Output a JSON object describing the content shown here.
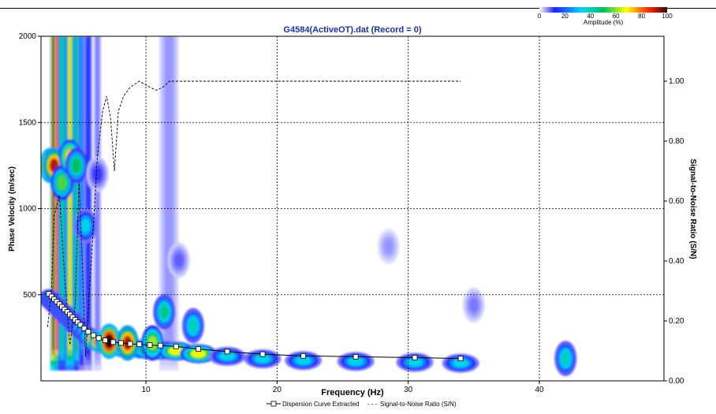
{
  "chart_data": {
    "type": "heatmap",
    "title": "G4584(ActiveOT).dat (Record = 0)",
    "xlabel": "Frequency (Hz)",
    "ylabel": "Phase Velocity (m/sec)",
    "y2label": "Signal-to-Noise Ratio (S/N)",
    "xlim": [
      2,
      49.5
    ],
    "ylim": [
      0,
      2000
    ],
    "y2lim": [
      0,
      1.15
    ],
    "xticks": [
      "10",
      "20",
      "30",
      "40"
    ],
    "yticks": [
      "500",
      "1000",
      "1500",
      "2000"
    ],
    "y2ticks": [
      "0.00",
      "0.20",
      "0.40",
      "0.60",
      "0.80",
      "1.00"
    ],
    "grid": true,
    "legend_position": "bottom-center",
    "colorbar": {
      "label": "Amplitude (%)",
      "ticks": [
        "0",
        "20",
        "40",
        "60",
        "80",
        "100"
      ],
      "position": "top-right",
      "colors": [
        "#ffffff",
        "#2020ff",
        "#00d4ff",
        "#00c060",
        "#ffff00",
        "#ff3000",
        "#400000"
      ]
    },
    "series": [
      {
        "name": "Dispersion Curve Extracted",
        "style": "line-with-square-markers",
        "x": [
          2.6,
          2.8,
          3.0,
          3.2,
          3.4,
          3.6,
          3.8,
          4.0,
          4.2,
          4.4,
          4.6,
          4.8,
          5.0,
          5.3,
          5.6,
          6.0,
          6.4,
          6.9,
          7.5,
          8.1,
          8.8,
          9.5,
          10.3,
          11.1,
          12.3,
          14.0,
          16.2,
          18.9,
          22.0,
          26.0,
          30.5,
          34.0
        ],
        "y": [
          505,
          490,
          475,
          460,
          445,
          430,
          415,
          400,
          385,
          370,
          355,
          340,
          325,
          305,
          285,
          265,
          248,
          235,
          225,
          220,
          215,
          212,
          208,
          205,
          200,
          185,
          170,
          155,
          145,
          140,
          135,
          130
        ]
      },
      {
        "name": "Signal-to-Noise Ratio (S/N)",
        "style": "dashed",
        "axis": "right",
        "x": [
          2.5,
          2.8,
          3.0,
          3.4,
          3.8,
          4.2,
          4.6,
          4.9,
          5.1,
          5.4,
          5.7,
          6.0,
          6.3,
          6.7,
          7.0,
          7.3,
          7.6,
          7.9,
          8.3,
          8.8,
          9.5,
          10.3,
          10.8,
          11.3,
          11.8,
          12.3,
          13.0,
          15.0,
          20.0,
          25.0,
          30.0,
          34.0
        ],
        "y": [
          0.18,
          0.3,
          0.55,
          0.62,
          0.35,
          0.12,
          0.25,
          0.66,
          0.45,
          0.08,
          0.3,
          0.52,
          0.75,
          0.9,
          0.95,
          0.88,
          0.7,
          0.9,
          0.95,
          0.98,
          1.0,
          0.98,
          0.97,
          0.98,
          1.0,
          1.0,
          1.0,
          1.0,
          1.0,
          1.0,
          1.0,
          1.0
        ]
      }
    ],
    "heatmap_blobs": [
      {
        "x": 2.7,
        "y": 1250,
        "level": 1.0
      },
      {
        "x": 3.0,
        "y": 1250,
        "level": 0.9
      },
      {
        "x": 3.6,
        "y": 1150,
        "level": 0.55
      },
      {
        "x": 4.2,
        "y": 1300,
        "level": 0.7
      },
      {
        "x": 4.7,
        "y": 1250,
        "level": 0.5
      },
      {
        "x": 5.4,
        "y": 900,
        "level": 0.35
      },
      {
        "x": 6.3,
        "y": 1200,
        "level": 0.15
      },
      {
        "x": 7.2,
        "y": 230,
        "level": 1.0
      },
      {
        "x": 8.6,
        "y": 220,
        "level": 0.9
      },
      {
        "x": 10.5,
        "y": 220,
        "level": 0.6
      },
      {
        "x": 11.4,
        "y": 400,
        "level": 0.45
      },
      {
        "x": 13.6,
        "y": 320,
        "level": 0.4
      },
      {
        "x": 12.5,
        "y": 700,
        "level": 0.12
      },
      {
        "x": 28.5,
        "y": 780,
        "level": 0.08
      },
      {
        "x": 35.0,
        "y": 440,
        "level": 0.1
      },
      {
        "x": 42.0,
        "y": 130,
        "level": 0.4
      }
    ]
  },
  "legend": {
    "dispersion_label": "Dispersion Curve Extracted",
    "separator": "- - -",
    "snr_label": "Signal-to-Noise Ratio (S/N)"
  }
}
